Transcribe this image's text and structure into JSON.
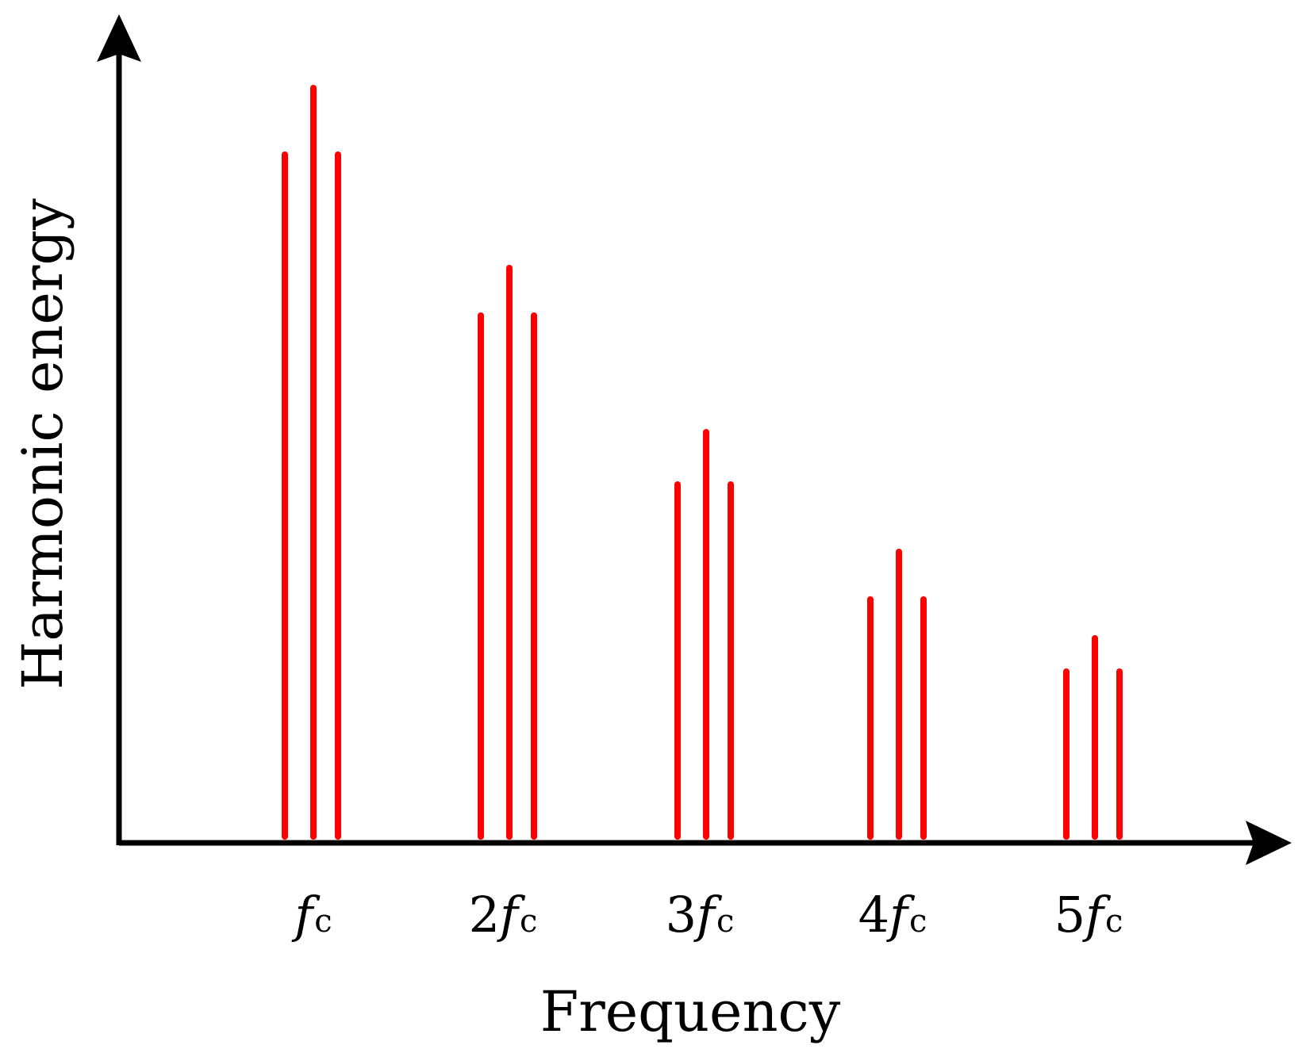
{
  "chart_data": {
    "type": "bar",
    "xlabel": "Frequency",
    "ylabel": "Harmonic energy",
    "categories": [
      {
        "prefix": "",
        "symbol": "f",
        "subscript": "c"
      },
      {
        "prefix": "2",
        "symbol": "f",
        "subscript": "c"
      },
      {
        "prefix": "3",
        "symbol": "f",
        "subscript": "c"
      },
      {
        "prefix": "4",
        "symbol": "f",
        "subscript": "c"
      },
      {
        "prefix": "5",
        "symbol": "f",
        "subscript": "c"
      }
    ],
    "series": [
      {
        "values": [
          0.86,
          0.657,
          0.444,
          0.299,
          0.208
        ]
      },
      {
        "values": [
          0.944,
          0.717,
          0.51,
          0.359,
          0.25
        ]
      },
      {
        "values": [
          0.86,
          0.657,
          0.444,
          0.299,
          0.208
        ]
      }
    ],
    "ylim": [
      0,
      1
    ],
    "grid": false,
    "colors": {
      "bars": "#ff0000",
      "axes": "#000000"
    }
  }
}
